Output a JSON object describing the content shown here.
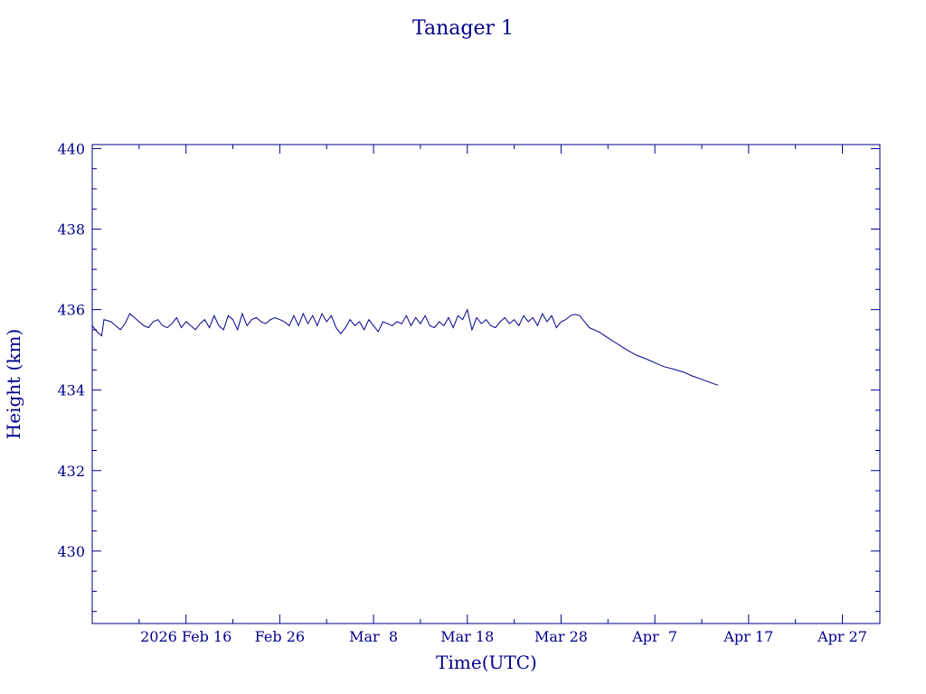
{
  "chart_data": {
    "type": "line",
    "title": "Tanager 1",
    "xlabel": "Time(UTC)",
    "ylabel": "Height (km)",
    "color": "#00008b",
    "x_range_days_feb": [
      1.0,
      30.0
    ],
    "ylim": [
      428.2,
      440.1
    ],
    "y_ticks": [
      430,
      432,
      434,
      436,
      438,
      440
    ],
    "x_ticks": [
      {
        "date": "2026-02-16",
        "label": "2026 Feb 16"
      },
      {
        "date": "2026-02-26",
        "label": "Feb 26"
      },
      {
        "date": "2026-03-08",
        "label": "Mar  8"
      },
      {
        "date": "2026-03-18",
        "label": "Mar 18"
      },
      {
        "date": "2026-03-28",
        "label": "Mar 28"
      },
      {
        "date": "2026-04-07",
        "label": "Apr  7"
      },
      {
        "date": "2026-04-17",
        "label": "Apr 17"
      },
      {
        "date": "2026-04-27",
        "label": "Apr 27"
      }
    ],
    "x_start": "2026-02-06",
    "x_end": "2026-05-01",
    "grid": false,
    "series": [
      {
        "values": [
          [
            "2026-02-06",
            435.6
          ],
          [
            "2026-02-06T12:00",
            435.45
          ],
          [
            "2026-02-07",
            435.35
          ],
          [
            "2026-02-07T06:00",
            435.75
          ],
          [
            "2026-02-08",
            435.7
          ],
          [
            "2026-02-08T12:00",
            435.6
          ],
          [
            "2026-02-09",
            435.5
          ],
          [
            "2026-02-09T12:00",
            435.65
          ],
          [
            "2026-02-10",
            435.9
          ],
          [
            "2026-02-10T12:00",
            435.8
          ],
          [
            "2026-02-11",
            435.7
          ],
          [
            "2026-02-11T12:00",
            435.6
          ],
          [
            "2026-02-12",
            435.55
          ],
          [
            "2026-02-12T12:00",
            435.7
          ],
          [
            "2026-02-13",
            435.75
          ],
          [
            "2026-02-13T12:00",
            435.6
          ],
          [
            "2026-02-14",
            435.55
          ],
          [
            "2026-02-14T12:00",
            435.65
          ],
          [
            "2026-02-15",
            435.8
          ],
          [
            "2026-02-15T12:00",
            435.55
          ],
          [
            "2026-02-16",
            435.7
          ],
          [
            "2026-02-16T12:00",
            435.6
          ],
          [
            "2026-02-17",
            435.5
          ],
          [
            "2026-02-17T12:00",
            435.65
          ],
          [
            "2026-02-18",
            435.75
          ],
          [
            "2026-02-18T12:00",
            435.55
          ],
          [
            "2026-02-19",
            435.85
          ],
          [
            "2026-02-19T12:00",
            435.6
          ],
          [
            "2026-02-20",
            435.5
          ],
          [
            "2026-02-20T12:00",
            435.85
          ],
          [
            "2026-02-21",
            435.75
          ],
          [
            "2026-02-21T12:00",
            435.5
          ],
          [
            "2026-02-22",
            435.9
          ],
          [
            "2026-02-22T12:00",
            435.6
          ],
          [
            "2026-02-23",
            435.75
          ],
          [
            "2026-02-23T12:00",
            435.8
          ],
          [
            "2026-02-24",
            435.7
          ],
          [
            "2026-02-24T12:00",
            435.65
          ],
          [
            "2026-02-25",
            435.75
          ],
          [
            "2026-02-25T12:00",
            435.8
          ],
          [
            "2026-02-26",
            435.75
          ],
          [
            "2026-02-26T12:00",
            435.7
          ],
          [
            "2026-02-27",
            435.6
          ],
          [
            "2026-02-27T12:00",
            435.85
          ],
          [
            "2026-02-28",
            435.6
          ],
          [
            "2026-02-28T12:00",
            435.9
          ],
          [
            "2026-03-01",
            435.65
          ],
          [
            "2026-03-01T12:00",
            435.85
          ],
          [
            "2026-03-02",
            435.6
          ],
          [
            "2026-03-02T12:00",
            435.9
          ],
          [
            "2026-03-03",
            435.7
          ],
          [
            "2026-03-03T12:00",
            435.85
          ],
          [
            "2026-03-04",
            435.55
          ],
          [
            "2026-03-04T12:00",
            435.4
          ],
          [
            "2026-03-05",
            435.55
          ],
          [
            "2026-03-05T12:00",
            435.75
          ],
          [
            "2026-03-06",
            435.6
          ],
          [
            "2026-03-06T12:00",
            435.7
          ],
          [
            "2026-03-07",
            435.5
          ],
          [
            "2026-03-07T12:00",
            435.75
          ],
          [
            "2026-03-08",
            435.6
          ],
          [
            "2026-03-08T12:00",
            435.45
          ],
          [
            "2026-03-09",
            435.7
          ],
          [
            "2026-03-09T12:00",
            435.65
          ],
          [
            "2026-03-10",
            435.6
          ],
          [
            "2026-03-10T12:00",
            435.7
          ],
          [
            "2026-03-11",
            435.65
          ],
          [
            "2026-03-11T12:00",
            435.85
          ],
          [
            "2026-03-12",
            435.6
          ],
          [
            "2026-03-12T12:00",
            435.8
          ],
          [
            "2026-03-13",
            435.65
          ],
          [
            "2026-03-13T12:00",
            435.85
          ],
          [
            "2026-03-14",
            435.6
          ],
          [
            "2026-03-14T12:00",
            435.55
          ],
          [
            "2026-03-15",
            435.7
          ],
          [
            "2026-03-15T12:00",
            435.6
          ],
          [
            "2026-03-16",
            435.8
          ],
          [
            "2026-03-16T12:00",
            435.55
          ],
          [
            "2026-03-17",
            435.85
          ],
          [
            "2026-03-17T12:00",
            435.75
          ],
          [
            "2026-03-18",
            436.0
          ],
          [
            "2026-03-18T12:00",
            435.5
          ],
          [
            "2026-03-19",
            435.8
          ],
          [
            "2026-03-19T12:00",
            435.65
          ],
          [
            "2026-03-20",
            435.75
          ],
          [
            "2026-03-20T12:00",
            435.6
          ],
          [
            "2026-03-21",
            435.55
          ],
          [
            "2026-03-21T12:00",
            435.7
          ],
          [
            "2026-03-22",
            435.8
          ],
          [
            "2026-03-22T12:00",
            435.65
          ],
          [
            "2026-03-23",
            435.75
          ],
          [
            "2026-03-23T12:00",
            435.6
          ],
          [
            "2026-03-24",
            435.85
          ],
          [
            "2026-03-24T12:00",
            435.7
          ],
          [
            "2026-03-25",
            435.8
          ],
          [
            "2026-03-25T12:00",
            435.6
          ],
          [
            "2026-03-26",
            435.9
          ],
          [
            "2026-03-26T12:00",
            435.7
          ],
          [
            "2026-03-27",
            435.85
          ],
          [
            "2026-03-27T12:00",
            435.55
          ],
          [
            "2026-03-28",
            435.7
          ],
          [
            "2026-03-28T12:00",
            435.75
          ],
          [
            "2026-03-29",
            435.85
          ],
          [
            "2026-03-29T12:00",
            435.88
          ],
          [
            "2026-03-30",
            435.85
          ],
          [
            "2026-03-30T12:00",
            435.7
          ],
          [
            "2026-03-31",
            435.55
          ],
          [
            "2026-04-01",
            435.45
          ],
          [
            "2026-04-02",
            435.3
          ],
          [
            "2026-04-03",
            435.15
          ],
          [
            "2026-04-04",
            435.0
          ],
          [
            "2026-04-05",
            434.87
          ],
          [
            "2026-04-06",
            434.78
          ],
          [
            "2026-04-07",
            434.68
          ],
          [
            "2026-04-08",
            434.58
          ],
          [
            "2026-04-09",
            434.52
          ],
          [
            "2026-04-10",
            434.45
          ],
          [
            "2026-04-11",
            434.35
          ],
          [
            "2026-04-12",
            434.27
          ],
          [
            "2026-04-13",
            434.18
          ],
          [
            "2026-04-13T18:00",
            434.12
          ]
        ]
      }
    ]
  }
}
